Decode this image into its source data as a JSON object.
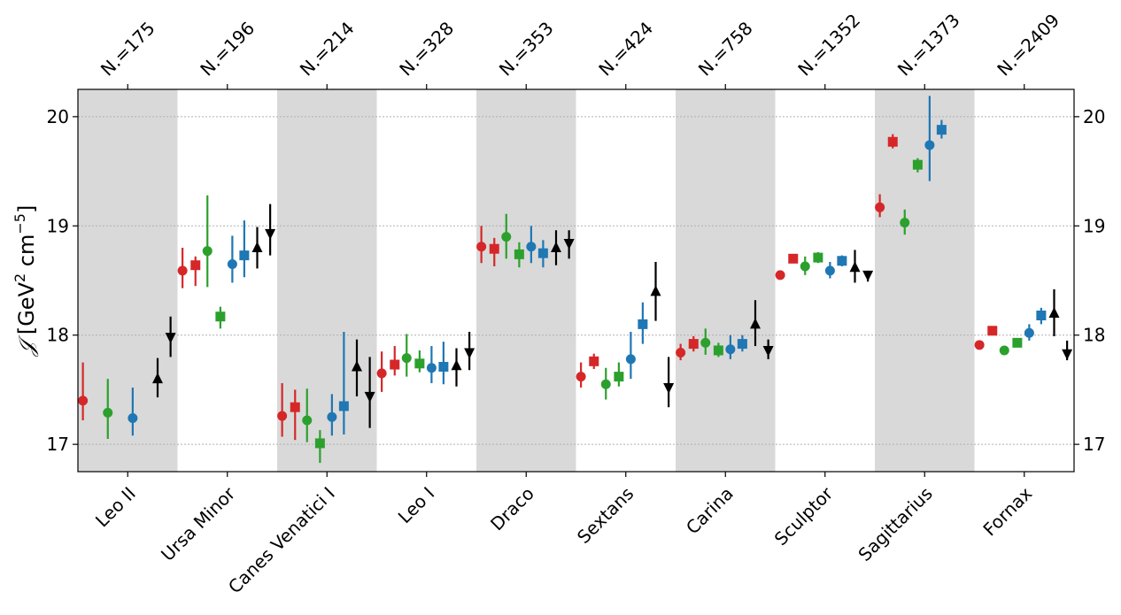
{
  "chart_data": {
    "type": "scatter",
    "ylabel": {
      "symbol": "𝒥",
      "unit_prefix": " [GeV",
      "unit_exp1": "2",
      "unit_mid": " cm",
      "unit_exp2": "−5",
      "unit_suffix": "]"
    },
    "ylim": [
      16.75,
      20.25
    ],
    "yticks": [
      "17",
      "18",
      "19",
      "20"
    ],
    "grid": "horizontal dotted",
    "shaded_bands": "alternating gray",
    "colors": {
      "red": "#d62728",
      "green": "#2ca02c",
      "blue": "#1f77b4",
      "black": "#000000",
      "band": "#d9d9d9"
    },
    "categories": [
      "Leo II",
      "Ursa Minor",
      "Canes Venatici I",
      "Leo I",
      "Draco",
      "Sextans",
      "Carina",
      "Sculptor",
      "Sagittarius",
      "Fornax"
    ],
    "top_labels": [
      "N.=175",
      "N.=196",
      "N.=214",
      "N.=328",
      "N.=353",
      "N.=424",
      "N.=758",
      "N.=1352",
      "N.=1373",
      "N.=2409"
    ],
    "points": [
      {
        "g": 0,
        "off": -0.45,
        "color": "red",
        "marker": "circle",
        "y": 17.4,
        "lo": 17.22,
        "hi": 17.75
      },
      {
        "g": 0,
        "off": -0.2,
        "color": "green",
        "marker": "circle",
        "y": 17.29,
        "lo": 17.05,
        "hi": 17.6
      },
      {
        "g": 0,
        "off": 0.05,
        "color": "blue",
        "marker": "circle",
        "y": 17.24,
        "lo": 17.08,
        "hi": 17.52
      },
      {
        "g": 0,
        "off": 0.3,
        "color": "black",
        "marker": "arrow-up",
        "y": 17.6,
        "lo": 17.43,
        "hi": 17.79
      },
      {
        "g": 0,
        "off": 0.43,
        "color": "black",
        "marker": "arrow-down",
        "y": 17.98,
        "lo": 17.8,
        "hi": 18.17
      },
      {
        "g": 1,
        "off": -0.45,
        "color": "red",
        "marker": "circle",
        "y": 18.59,
        "lo": 18.43,
        "hi": 18.8
      },
      {
        "g": 1,
        "off": -0.32,
        "color": "red",
        "marker": "square",
        "y": 18.64,
        "lo": 18.45,
        "hi": 18.72
      },
      {
        "g": 1,
        "off": -0.2,
        "color": "green",
        "marker": "circle",
        "y": 18.77,
        "lo": 18.44,
        "hi": 19.28
      },
      {
        "g": 1,
        "off": -0.07,
        "color": "green",
        "marker": "square",
        "y": 18.17,
        "lo": 18.06,
        "hi": 18.26
      },
      {
        "g": 1,
        "off": 0.05,
        "color": "blue",
        "marker": "circle",
        "y": 18.65,
        "lo": 18.48,
        "hi": 18.91
      },
      {
        "g": 1,
        "off": 0.17,
        "color": "blue",
        "marker": "square",
        "y": 18.73,
        "lo": 18.53,
        "hi": 19.05
      },
      {
        "g": 1,
        "off": 0.3,
        "color": "black",
        "marker": "arrow-up",
        "y": 18.8,
        "lo": 18.61,
        "hi": 18.99
      },
      {
        "g": 1,
        "off": 0.43,
        "color": "black",
        "marker": "arrow-down",
        "y": 18.93,
        "lo": 18.73,
        "hi": 19.2
      },
      {
        "g": 2,
        "off": -0.45,
        "color": "red",
        "marker": "circle",
        "y": 17.26,
        "lo": 17.07,
        "hi": 17.56
      },
      {
        "g": 2,
        "off": -0.32,
        "color": "red",
        "marker": "square",
        "y": 17.34,
        "lo": 17.04,
        "hi": 17.5
      },
      {
        "g": 2,
        "off": -0.2,
        "color": "green",
        "marker": "circle",
        "y": 17.22,
        "lo": 17.02,
        "hi": 17.51
      },
      {
        "g": 2,
        "off": -0.07,
        "color": "green",
        "marker": "square",
        "y": 17.01,
        "lo": 16.83,
        "hi": 17.13
      },
      {
        "g": 2,
        "off": 0.05,
        "color": "blue",
        "marker": "circle",
        "y": 17.25,
        "lo": 17.08,
        "hi": 17.46
      },
      {
        "g": 2,
        "off": 0.17,
        "color": "blue",
        "marker": "square",
        "y": 17.35,
        "lo": 17.09,
        "hi": 18.03
      },
      {
        "g": 2,
        "off": 0.3,
        "color": "black",
        "marker": "arrow-up",
        "y": 17.71,
        "lo": 17.44,
        "hi": 17.96
      },
      {
        "g": 2,
        "off": 0.43,
        "color": "black",
        "marker": "arrow-down",
        "y": 17.44,
        "lo": 17.15,
        "hi": 17.8
      },
      {
        "g": 3,
        "off": -0.45,
        "color": "red",
        "marker": "circle",
        "y": 17.65,
        "lo": 17.48,
        "hi": 17.85
      },
      {
        "g": 3,
        "off": -0.32,
        "color": "red",
        "marker": "square",
        "y": 17.73,
        "lo": 17.63,
        "hi": 17.9
      },
      {
        "g": 3,
        "off": -0.2,
        "color": "green",
        "marker": "circle",
        "y": 17.79,
        "lo": 17.62,
        "hi": 18.01
      },
      {
        "g": 3,
        "off": -0.07,
        "color": "green",
        "marker": "square",
        "y": 17.74,
        "lo": 17.66,
        "hi": 17.86
      },
      {
        "g": 3,
        "off": 0.05,
        "color": "blue",
        "marker": "circle",
        "y": 17.7,
        "lo": 17.56,
        "hi": 17.9
      },
      {
        "g": 3,
        "off": 0.17,
        "color": "blue",
        "marker": "square",
        "y": 17.71,
        "lo": 17.55,
        "hi": 17.94
      },
      {
        "g": 3,
        "off": 0.3,
        "color": "black",
        "marker": "arrow-up",
        "y": 17.72,
        "lo": 17.53,
        "hi": 17.88
      },
      {
        "g": 3,
        "off": 0.43,
        "color": "black",
        "marker": "arrow-down",
        "y": 17.84,
        "lo": 17.68,
        "hi": 18.03
      },
      {
        "g": 4,
        "off": -0.45,
        "color": "red",
        "marker": "circle",
        "y": 18.81,
        "lo": 18.66,
        "hi": 19.0
      },
      {
        "g": 4,
        "off": -0.32,
        "color": "red",
        "marker": "square",
        "y": 18.79,
        "lo": 18.63,
        "hi": 18.89
      },
      {
        "g": 4,
        "off": -0.2,
        "color": "green",
        "marker": "circle",
        "y": 18.9,
        "lo": 18.7,
        "hi": 19.11
      },
      {
        "g": 4,
        "off": -0.07,
        "color": "green",
        "marker": "square",
        "y": 18.74,
        "lo": 18.62,
        "hi": 18.85
      },
      {
        "g": 4,
        "off": 0.05,
        "color": "blue",
        "marker": "circle",
        "y": 18.81,
        "lo": 18.66,
        "hi": 19.0
      },
      {
        "g": 4,
        "off": 0.17,
        "color": "blue",
        "marker": "square",
        "y": 18.75,
        "lo": 18.62,
        "hi": 18.87
      },
      {
        "g": 4,
        "off": 0.3,
        "color": "black",
        "marker": "arrow-up",
        "y": 18.8,
        "lo": 18.64,
        "hi": 18.96
      },
      {
        "g": 4,
        "off": 0.43,
        "color": "black",
        "marker": "arrow-down",
        "y": 18.84,
        "lo": 18.7,
        "hi": 18.96
      },
      {
        "g": 5,
        "off": -0.45,
        "color": "red",
        "marker": "circle",
        "y": 17.62,
        "lo": 17.52,
        "hi": 17.75
      },
      {
        "g": 5,
        "off": -0.32,
        "color": "red",
        "marker": "square",
        "y": 17.76,
        "lo": 17.69,
        "hi": 17.83
      },
      {
        "g": 5,
        "off": -0.2,
        "color": "green",
        "marker": "circle",
        "y": 17.55,
        "lo": 17.41,
        "hi": 17.7
      },
      {
        "g": 5,
        "off": -0.07,
        "color": "green",
        "marker": "square",
        "y": 17.62,
        "lo": 17.53,
        "hi": 17.75
      },
      {
        "g": 5,
        "off": 0.05,
        "color": "blue",
        "marker": "circle",
        "y": 17.78,
        "lo": 17.6,
        "hi": 18.03
      },
      {
        "g": 5,
        "off": 0.17,
        "color": "blue",
        "marker": "square",
        "y": 18.1,
        "lo": 17.92,
        "hi": 18.3
      },
      {
        "g": 5,
        "off": 0.3,
        "color": "black",
        "marker": "arrow-up",
        "y": 18.4,
        "lo": 18.13,
        "hi": 18.67
      },
      {
        "g": 5,
        "off": 0.43,
        "color": "black",
        "marker": "arrow-down",
        "y": 17.52,
        "lo": 17.34,
        "hi": 17.8
      },
      {
        "g": 6,
        "off": -0.45,
        "color": "red",
        "marker": "circle",
        "y": 17.84,
        "lo": 17.77,
        "hi": 17.92
      },
      {
        "g": 6,
        "off": -0.32,
        "color": "red",
        "marker": "square",
        "y": 17.92,
        "lo": 17.85,
        "hi": 17.99
      },
      {
        "g": 6,
        "off": -0.2,
        "color": "green",
        "marker": "circle",
        "y": 17.93,
        "lo": 17.82,
        "hi": 18.06
      },
      {
        "g": 6,
        "off": -0.07,
        "color": "green",
        "marker": "square",
        "y": 17.86,
        "lo": 17.8,
        "hi": 17.93
      },
      {
        "g": 6,
        "off": 0.05,
        "color": "blue",
        "marker": "circle",
        "y": 17.87,
        "lo": 17.78,
        "hi": 18.0
      },
      {
        "g": 6,
        "off": 0.17,
        "color": "blue",
        "marker": "square",
        "y": 17.92,
        "lo": 17.85,
        "hi": 18.0
      },
      {
        "g": 6,
        "off": 0.3,
        "color": "black",
        "marker": "arrow-up",
        "y": 18.1,
        "lo": 17.9,
        "hi": 18.32
      },
      {
        "g": 6,
        "off": 0.43,
        "color": "black",
        "marker": "arrow-down",
        "y": 17.86,
        "lo": 17.78,
        "hi": 17.96
      },
      {
        "g": 7,
        "off": -0.45,
        "color": "red",
        "marker": "circle",
        "y": 18.55,
        "lo": 18.51,
        "hi": 18.59
      },
      {
        "g": 7,
        "off": -0.32,
        "color": "red",
        "marker": "square",
        "y": 18.7,
        "lo": 18.66,
        "hi": 18.74
      },
      {
        "g": 7,
        "off": -0.2,
        "color": "green",
        "marker": "circle",
        "y": 18.63,
        "lo": 18.55,
        "hi": 18.72
      },
      {
        "g": 7,
        "off": -0.07,
        "color": "green",
        "marker": "square",
        "y": 18.71,
        "lo": 18.66,
        "hi": 18.76
      },
      {
        "g": 7,
        "off": 0.05,
        "color": "blue",
        "marker": "circle",
        "y": 18.59,
        "lo": 18.52,
        "hi": 18.67
      },
      {
        "g": 7,
        "off": 0.17,
        "color": "blue",
        "marker": "square",
        "y": 18.68,
        "lo": 18.63,
        "hi": 18.73
      },
      {
        "g": 7,
        "off": 0.3,
        "color": "black",
        "marker": "arrow-up",
        "y": 18.62,
        "lo": 18.48,
        "hi": 18.78
      },
      {
        "g": 7,
        "off": 0.43,
        "color": "black",
        "marker": "arrow-down",
        "y": 18.55,
        "lo": 18.49,
        "hi": 18.59
      },
      {
        "g": 8,
        "off": -0.45,
        "color": "red",
        "marker": "circle",
        "y": 19.17,
        "lo": 19.08,
        "hi": 19.29
      },
      {
        "g": 8,
        "off": -0.32,
        "color": "red",
        "marker": "square",
        "y": 19.77,
        "lo": 19.71,
        "hi": 19.84
      },
      {
        "g": 8,
        "off": -0.2,
        "color": "green",
        "marker": "circle",
        "y": 19.03,
        "lo": 18.92,
        "hi": 19.15
      },
      {
        "g": 8,
        "off": -0.07,
        "color": "green",
        "marker": "square",
        "y": 19.56,
        "lo": 19.49,
        "hi": 19.62
      },
      {
        "g": 8,
        "off": 0.05,
        "color": "blue",
        "marker": "circle",
        "y": 19.74,
        "lo": 19.41,
        "hi": 20.19
      },
      {
        "g": 8,
        "off": 0.17,
        "color": "blue",
        "marker": "square",
        "y": 19.88,
        "lo": 19.8,
        "hi": 19.97
      },
      {
        "g": 9,
        "off": -0.45,
        "color": "red",
        "marker": "circle",
        "y": 17.91,
        "lo": 17.87,
        "hi": 17.95
      },
      {
        "g": 9,
        "off": -0.32,
        "color": "red",
        "marker": "square",
        "y": 18.04,
        "lo": 18.0,
        "hi": 18.08
      },
      {
        "g": 9,
        "off": -0.2,
        "color": "green",
        "marker": "circle",
        "y": 17.86,
        "lo": 17.83,
        "hi": 17.89
      },
      {
        "g": 9,
        "off": -0.07,
        "color": "green",
        "marker": "square",
        "y": 17.93,
        "lo": 17.89,
        "hi": 17.96
      },
      {
        "g": 9,
        "off": 0.05,
        "color": "blue",
        "marker": "circle",
        "y": 18.02,
        "lo": 17.95,
        "hi": 18.1
      },
      {
        "g": 9,
        "off": 0.17,
        "color": "blue",
        "marker": "square",
        "y": 18.18,
        "lo": 18.1,
        "hi": 18.25
      },
      {
        "g": 9,
        "off": 0.3,
        "color": "black",
        "marker": "arrow-up",
        "y": 18.2,
        "lo": 17.99,
        "hi": 18.42
      },
      {
        "g": 9,
        "off": 0.43,
        "color": "black",
        "marker": "arrow-down",
        "y": 17.83,
        "lo": 17.77,
        "hi": 17.95
      }
    ]
  }
}
